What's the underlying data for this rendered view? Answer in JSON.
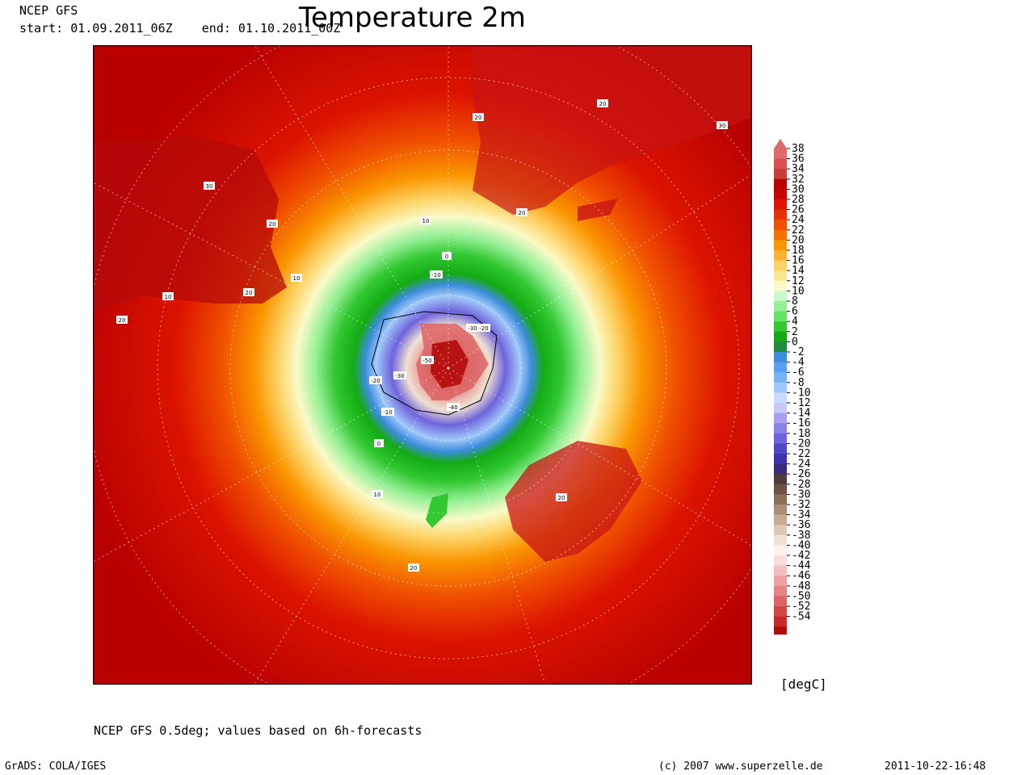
{
  "header": {
    "model": "NCEP GFS",
    "period": "start: 01.09.2011_06Z    end: 01.10.2011_00Z",
    "title": "Temperature 2m"
  },
  "map": {
    "projection": "polar-stereographic (south pole centered)",
    "contour_labels": [
      "-50",
      "-40",
      "-30",
      "-30",
      "-20",
      "-20",
      "-10",
      "-10",
      "0",
      "0",
      "10",
      "10",
      "10",
      "10",
      "20",
      "20",
      "20",
      "20",
      "20",
      "20",
      "20",
      "20",
      "30",
      "30"
    ]
  },
  "legend": {
    "labels": [
      "38",
      "36",
      "34",
      "32",
      "30",
      "28",
      "26",
      "24",
      "22",
      "20",
      "18",
      "16",
      "14",
      "12",
      "10",
      "8",
      "6",
      "4",
      "2",
      "0",
      "-2",
      "-4",
      "-6",
      "-8",
      "-10",
      "-12",
      "-14",
      "-16",
      "-18",
      "-20",
      "-22",
      "-24",
      "-26",
      "-28",
      "-30",
      "-32",
      "-34",
      "-36",
      "-38",
      "-40",
      "-42",
      "-44",
      "-46",
      "-48",
      "-50",
      "-52",
      "-54"
    ],
    "colors": [
      "#e06a6a",
      "#d85050",
      "#c83c3c",
      "#b80000",
      "#c80000",
      "#dc1400",
      "#e63200",
      "#f05000",
      "#f87000",
      "#fa9600",
      "#fbb432",
      "#fdd264",
      "#ffe696",
      "#fafac8",
      "#c8fac8",
      "#96f096",
      "#64e664",
      "#32c832",
      "#14aa14",
      "#1e8c3c",
      "#3c8cdc",
      "#5aa0f0",
      "#78b4f5",
      "#a0c8fa",
      "#c8dcff",
      "#c8c8fa",
      "#aaa0f0",
      "#8c82e6",
      "#6e64dc",
      "#5046c8",
      "#3c32aa",
      "#3c2878",
      "#503c3c",
      "#6e5046",
      "#8c6e5a",
      "#aa8c78",
      "#c8aa96",
      "#e1c8b4",
      "#f0e1d2",
      "#fff0f0",
      "#fadcdc",
      "#f5bebe",
      "#f0a0a0",
      "#e68282",
      "#dc6464",
      "#d24646",
      "#c82828",
      "#b40a0a"
    ],
    "unit": "[degC]"
  },
  "footer": {
    "note": "NCEP GFS 0.5deg; values based on 6h-forecasts",
    "software": "GrADS: COLA/IGES",
    "copyright": "(c) 2007 www.superzelle.de",
    "generated": "2011-10-22-16:48"
  }
}
